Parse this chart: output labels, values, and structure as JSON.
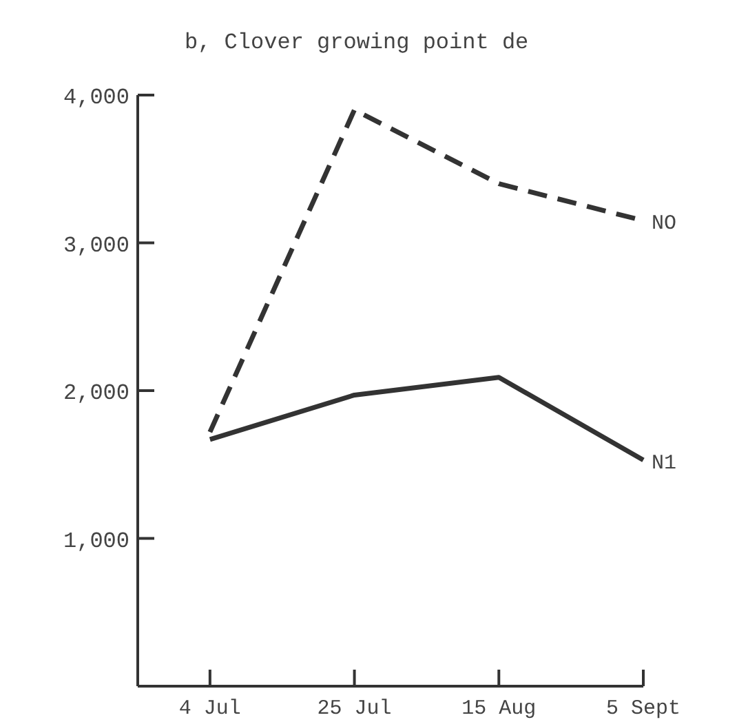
{
  "chart_data": {
    "type": "line",
    "title": "b, Clover growing point de",
    "categories": [
      "4 Jul",
      "25 Jul",
      "15 Aug",
      "5 Sept"
    ],
    "series": [
      {
        "name": "NO",
        "color": "#333333",
        "line_style": "dashed",
        "values": [
          1720,
          3900,
          3400,
          3150
        ]
      },
      {
        "name": "N1",
        "color": "#333333",
        "line_style": "solid",
        "values": [
          1670,
          1970,
          2090,
          1530
        ]
      }
    ],
    "ylim": [
      0,
      4000
    ],
    "yticks": [
      {
        "value": 1000,
        "label": "1,000"
      },
      {
        "value": 2000,
        "label": "2,000"
      },
      {
        "value": 3000,
        "label": "3,000"
      },
      {
        "value": 4000,
        "label": "4,000"
      }
    ],
    "grid": false,
    "legend": false,
    "marker": "none"
  }
}
